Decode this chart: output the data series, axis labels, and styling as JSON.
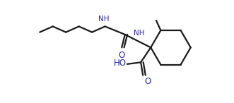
{
  "bg_color": "#ffffff",
  "line_color": "#1a1a1a",
  "text_color": "#2626a0",
  "bond_lw": 1.6,
  "figsize": [
    3.31,
    1.46
  ],
  "dpi": 100,
  "xlim": [
    0,
    10
  ],
  "ylim": [
    0,
    4.4
  ]
}
